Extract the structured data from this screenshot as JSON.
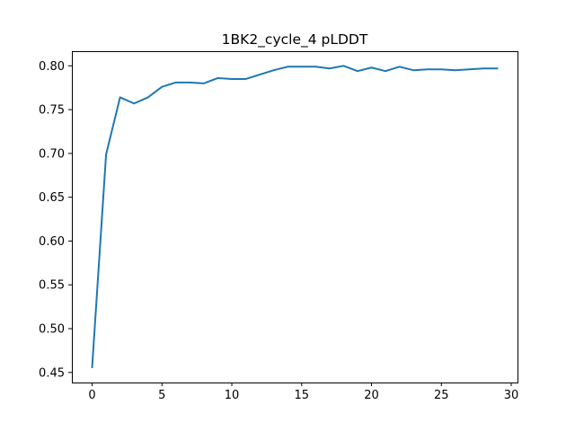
{
  "chart_data": {
    "type": "line",
    "title": "1BK2_cycle_4 pLDDT",
    "xlabel": "",
    "ylabel": "",
    "xlim": [
      -1.45,
      30.45
    ],
    "ylim": [
      0.4385,
      0.8157
    ],
    "grid": false,
    "x_ticks": [
      0,
      5,
      10,
      15,
      20,
      25,
      30
    ],
    "y_ticks": [
      0.45,
      0.5,
      0.55,
      0.6,
      0.65,
      0.7,
      0.75,
      0.8
    ],
    "x_tick_labels": [
      "0",
      "5",
      "10",
      "15",
      "20",
      "25",
      "30"
    ],
    "y_tick_labels": [
      "0.45",
      "0.50",
      "0.55",
      "0.60",
      "0.65",
      "0.70",
      "0.75",
      "0.80"
    ],
    "series": [
      {
        "color": "#1f77b4",
        "x": [
          0,
          1,
          2,
          3,
          4,
          5,
          6,
          7,
          8,
          9,
          10,
          11,
          12,
          13,
          14,
          15,
          16,
          17,
          18,
          19,
          20,
          21,
          22,
          23,
          24,
          25,
          26,
          27,
          28,
          29
        ],
        "values": [
          0.456,
          0.699,
          0.764,
          0.757,
          0.764,
          0.776,
          0.781,
          0.781,
          0.78,
          0.786,
          0.785,
          0.785,
          0.79,
          0.795,
          0.799,
          0.799,
          0.799,
          0.797,
          0.8,
          0.794,
          0.798,
          0.794,
          0.799,
          0.795,
          0.796,
          0.796,
          0.795,
          0.796,
          0.797,
          0.797
        ]
      }
    ]
  }
}
